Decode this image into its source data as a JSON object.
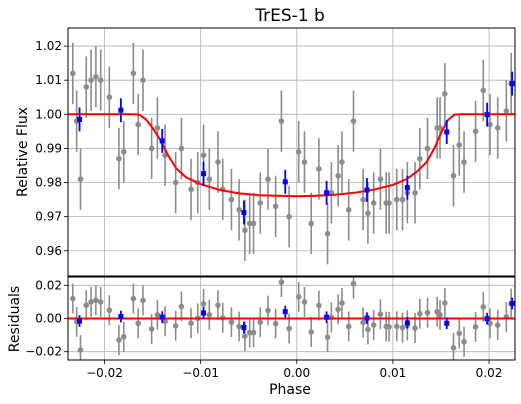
{
  "chart_data": [
    {
      "panel": "main",
      "type": "scatter",
      "title": "TrES-1 b",
      "xlabel": "",
      "ylabel": "Relative Flux",
      "xlim": [
        -0.0238,
        0.0227
      ],
      "ylim": [
        0.9526,
        1.0253
      ],
      "yticks": [
        0.96,
        0.97,
        0.98,
        0.99,
        1.0,
        1.01,
        1.02
      ],
      "ytick_labels": [
        "0.96",
        "0.97",
        "0.98",
        "0.99",
        "1.00",
        "1.01",
        "1.02"
      ],
      "grid": true,
      "series": [
        {
          "kind": "raw",
          "color": "#8c8c8c",
          "points": [
            [
              -0.0233,
              1.012,
              0.009
            ],
            [
              -0.0229,
              0.998,
              0.009
            ],
            [
              -0.0225,
              0.981,
              0.009
            ],
            [
              -0.0219,
              1.008,
              0.009
            ],
            [
              -0.0214,
              1.01,
              0.009
            ],
            [
              -0.0209,
              1.011,
              0.009
            ],
            [
              -0.0204,
              1.01,
              0.009
            ],
            [
              -0.0195,
              1.005,
              0.009
            ],
            [
              -0.0185,
              0.987,
              0.009
            ],
            [
              -0.018,
              0.989,
              0.009
            ],
            [
              -0.017,
              1.012,
              0.009
            ],
            [
              -0.0165,
              0.997,
              0.009
            ],
            [
              -0.016,
              1.01,
              0.009
            ],
            [
              -0.0151,
              0.99,
              0.009
            ],
            [
              -0.0145,
              0.996,
              0.009
            ],
            [
              -0.0137,
              0.988,
              0.009
            ],
            [
              -0.0126,
              0.98,
              0.009
            ],
            [
              -0.012,
              0.99,
              0.009
            ],
            [
              -0.011,
              0.978,
              0.009
            ],
            [
              -0.0103,
              0.98,
              0.009
            ],
            [
              -0.0097,
              0.988,
              0.009
            ],
            [
              -0.0091,
              0.981,
              0.009
            ],
            [
              -0.0082,
              0.986,
              0.009
            ],
            [
              -0.0077,
              0.978,
              0.009
            ],
            [
              -0.0068,
              0.975,
              0.009
            ],
            [
              -0.006,
              0.972,
              0.009
            ],
            [
              -0.0054,
              0.966,
              0.009
            ],
            [
              -0.0049,
              0.968,
              0.009
            ],
            [
              -0.0045,
              0.968,
              0.009
            ],
            [
              -0.0038,
              0.974,
              0.009
            ],
            [
              -0.003,
              0.981,
              0.009
            ],
            [
              -0.0022,
              0.973,
              0.009
            ],
            [
              -0.0016,
              0.998,
              0.009
            ],
            [
              -0.0008,
              0.97,
              0.009
            ],
            [
              0.0002,
              0.989,
              0.009
            ],
            [
              0.0008,
              0.986,
              0.009
            ],
            [
              0.0015,
              0.968,
              0.009
            ],
            [
              0.0023,
              0.984,
              0.009
            ],
            [
              0.0032,
              0.965,
              0.009
            ],
            [
              0.0036,
              0.977,
              0.009
            ],
            [
              0.0043,
              0.982,
              0.009
            ],
            [
              0.0047,
              0.986,
              0.009
            ],
            [
              0.0054,
              0.972,
              0.009
            ],
            [
              0.0059,
              0.998,
              0.009
            ],
            [
              0.0069,
              0.975,
              0.009
            ],
            [
              0.0074,
              0.971,
              0.009
            ],
            [
              0.008,
              0.974,
              0.009
            ],
            [
              0.0087,
              0.981,
              0.009
            ],
            [
              0.0093,
              0.974,
              0.009
            ],
            [
              0.0096,
              0.974,
              0.009
            ],
            [
              0.0104,
              0.975,
              0.009
            ],
            [
              0.011,
              0.975,
              0.009
            ],
            [
              0.0115,
              0.977,
              0.009
            ],
            [
              0.0123,
              0.977,
              0.009
            ],
            [
              0.0128,
              0.987,
              0.009
            ],
            [
              0.0136,
              0.99,
              0.009
            ],
            [
              0.0146,
              0.996,
              0.009
            ],
            [
              0.0149,
              0.996,
              0.009
            ],
            [
              0.0154,
              1.006,
              0.009
            ],
            [
              0.0163,
              0.982,
              0.009
            ],
            [
              0.0169,
              0.991,
              0.009
            ],
            [
              0.0174,
              0.986,
              0.009
            ],
            [
              0.0186,
              0.995,
              0.009
            ],
            [
              0.0194,
              1.007,
              0.009
            ],
            [
              0.0201,
              0.997,
              0.009
            ],
            [
              0.0209,
              0.996,
              0.009
            ],
            [
              0.0218,
              1.001,
              0.009
            ],
            [
              0.0223,
              1.009,
              0.009
            ]
          ]
        },
        {
          "kind": "binned",
          "color": "#0000ff",
          "points": [
            [
              -0.0226,
              0.9985,
              0.0035
            ],
            [
              -0.0183,
              1.0012,
              0.0035
            ],
            [
              -0.014,
              0.9922,
              0.0035
            ],
            [
              -0.0097,
              0.9826,
              0.0035
            ],
            [
              -0.0055,
              0.9712,
              0.0035
            ],
            [
              -0.0012,
              0.9802,
              0.0035
            ],
            [
              0.0031,
              0.977,
              0.0035
            ],
            [
              0.0073,
              0.9778,
              0.0035
            ],
            [
              0.0115,
              0.9785,
              0.0035
            ],
            [
              0.0156,
              0.9948,
              0.0035
            ],
            [
              0.0198,
              0.9999,
              0.0035
            ],
            [
              0.0224,
              1.009,
              0.0035
            ]
          ]
        },
        {
          "kind": "model",
          "color": "#ff0000",
          "points": [
            [
              -0.0238,
              1.0
            ],
            [
              -0.017,
              1.0
            ],
            [
              -0.0164,
              0.9999
            ],
            [
              -0.0157,
              0.9985
            ],
            [
              -0.015,
              0.996
            ],
            [
              -0.0142,
              0.9925
            ],
            [
              -0.0134,
              0.988
            ],
            [
              -0.0125,
              0.984
            ],
            [
              -0.0115,
              0.9815
            ],
            [
              -0.01,
              0.9795
            ],
            [
              -0.008,
              0.9778
            ],
            [
              -0.006,
              0.9768
            ],
            [
              -0.004,
              0.9763
            ],
            [
              -0.002,
              0.9761
            ],
            [
              0.0,
              0.976
            ],
            [
              0.002,
              0.9761
            ],
            [
              0.004,
              0.9764
            ],
            [
              0.006,
              0.977
            ],
            [
              0.008,
              0.9779
            ],
            [
              0.01,
              0.9793
            ],
            [
              0.0115,
              0.9811
            ],
            [
              0.0125,
              0.9832
            ],
            [
              0.0135,
              0.986
            ],
            [
              0.0143,
              0.99
            ],
            [
              0.015,
              0.9945
            ],
            [
              0.0157,
              0.9982
            ],
            [
              0.0164,
              0.9999
            ],
            [
              0.017,
              1.0
            ],
            [
              0.0227,
              1.0
            ]
          ]
        }
      ]
    },
    {
      "panel": "residuals",
      "type": "scatter",
      "xlabel": "Phase",
      "ylabel": "Residuals",
      "xlim": [
        -0.0238,
        0.0227
      ],
      "ylim": [
        -0.025,
        0.025
      ],
      "xticks": [
        -0.02,
        -0.01,
        0.0,
        0.01,
        0.02
      ],
      "xtick_labels": [
        "−0.02",
        "−0.01",
        "0.00",
        "0.01",
        "0.02"
      ],
      "yticks": [
        -0.02,
        0.0,
        0.02
      ],
      "ytick_labels": [
        "−0.02",
        "0.00",
        "0.02"
      ],
      "grid": true,
      "zero_line_color": "#ff0000"
    }
  ]
}
